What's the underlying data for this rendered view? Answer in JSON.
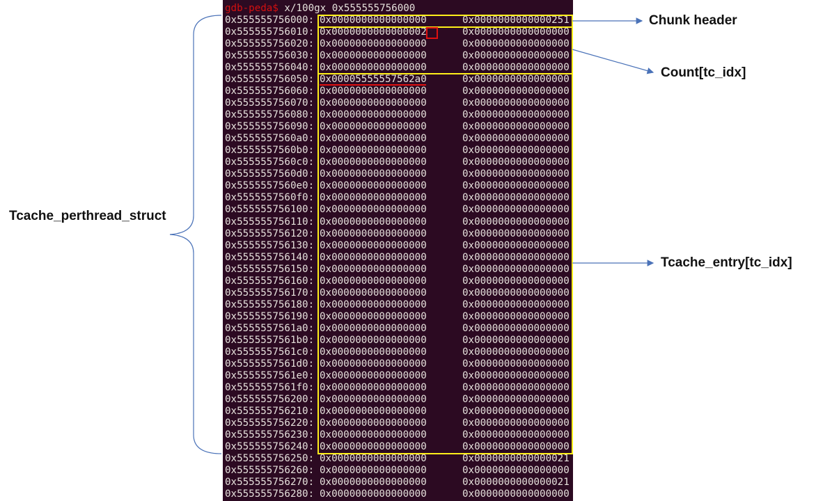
{
  "terminal": {
    "prompt": "gdb-peda$",
    "command": " x/100gx 0x555555756000",
    "rows": [
      {
        "address": "0x555555756000:",
        "v1": "0x0000000000000000",
        "v2": "0x0000000000000251"
      },
      {
        "address": "0x555555756010:",
        "v1": "0x0000000000000002",
        "v2": "0x0000000000000000"
      },
      {
        "address": "0x555555756020:",
        "v1": "0x0000000000000000",
        "v2": "0x0000000000000000"
      },
      {
        "address": "0x555555756030:",
        "v1": "0x0000000000000000",
        "v2": "0x0000000000000000"
      },
      {
        "address": "0x555555756040:",
        "v1": "0x0000000000000000",
        "v2": "0x0000000000000000"
      },
      {
        "address": "0x555555756050:",
        "v1": "0x00005555557562a0",
        "v2": "0x0000000000000000"
      },
      {
        "address": "0x555555756060:",
        "v1": "0x0000000000000000",
        "v2": "0x0000000000000000"
      },
      {
        "address": "0x555555756070:",
        "v1": "0x0000000000000000",
        "v2": "0x0000000000000000"
      },
      {
        "address": "0x555555756080:",
        "v1": "0x0000000000000000",
        "v2": "0x0000000000000000"
      },
      {
        "address": "0x555555756090:",
        "v1": "0x0000000000000000",
        "v2": "0x0000000000000000"
      },
      {
        "address": "0x5555557560a0:",
        "v1": "0x0000000000000000",
        "v2": "0x0000000000000000"
      },
      {
        "address": "0x5555557560b0:",
        "v1": "0x0000000000000000",
        "v2": "0x0000000000000000"
      },
      {
        "address": "0x5555557560c0:",
        "v1": "0x0000000000000000",
        "v2": "0x0000000000000000"
      },
      {
        "address": "0x5555557560d0:",
        "v1": "0x0000000000000000",
        "v2": "0x0000000000000000"
      },
      {
        "address": "0x5555557560e0:",
        "v1": "0x0000000000000000",
        "v2": "0x0000000000000000"
      },
      {
        "address": "0x5555557560f0:",
        "v1": "0x0000000000000000",
        "v2": "0x0000000000000000"
      },
      {
        "address": "0x555555756100:",
        "v1": "0x0000000000000000",
        "v2": "0x0000000000000000"
      },
      {
        "address": "0x555555756110:",
        "v1": "0x0000000000000000",
        "v2": "0x0000000000000000"
      },
      {
        "address": "0x555555756120:",
        "v1": "0x0000000000000000",
        "v2": "0x0000000000000000"
      },
      {
        "address": "0x555555756130:",
        "v1": "0x0000000000000000",
        "v2": "0x0000000000000000"
      },
      {
        "address": "0x555555756140:",
        "v1": "0x0000000000000000",
        "v2": "0x0000000000000000"
      },
      {
        "address": "0x555555756150:",
        "v1": "0x0000000000000000",
        "v2": "0x0000000000000000"
      },
      {
        "address": "0x555555756160:",
        "v1": "0x0000000000000000",
        "v2": "0x0000000000000000"
      },
      {
        "address": "0x555555756170:",
        "v1": "0x0000000000000000",
        "v2": "0x0000000000000000"
      },
      {
        "address": "0x555555756180:",
        "v1": "0x0000000000000000",
        "v2": "0x0000000000000000"
      },
      {
        "address": "0x555555756190:",
        "v1": "0x0000000000000000",
        "v2": "0x0000000000000000"
      },
      {
        "address": "0x5555557561a0:",
        "v1": "0x0000000000000000",
        "v2": "0x0000000000000000"
      },
      {
        "address": "0x5555557561b0:",
        "v1": "0x0000000000000000",
        "v2": "0x0000000000000000"
      },
      {
        "address": "0x5555557561c0:",
        "v1": "0x0000000000000000",
        "v2": "0x0000000000000000"
      },
      {
        "address": "0x5555557561d0:",
        "v1": "0x0000000000000000",
        "v2": "0x0000000000000000"
      },
      {
        "address": "0x5555557561e0:",
        "v1": "0x0000000000000000",
        "v2": "0x0000000000000000"
      },
      {
        "address": "0x5555557561f0:",
        "v1": "0x0000000000000000",
        "v2": "0x0000000000000000"
      },
      {
        "address": "0x555555756200:",
        "v1": "0x0000000000000000",
        "v2": "0x0000000000000000"
      },
      {
        "address": "0x555555756210:",
        "v1": "0x0000000000000000",
        "v2": "0x0000000000000000"
      },
      {
        "address": "0x555555756220:",
        "v1": "0x0000000000000000",
        "v2": "0x0000000000000000"
      },
      {
        "address": "0x555555756230:",
        "v1": "0x0000000000000000",
        "v2": "0x0000000000000000"
      },
      {
        "address": "0x555555756240:",
        "v1": "0x0000000000000000",
        "v2": "0x0000000000000000"
      },
      {
        "address": "0x555555756250:",
        "v1": "0x0000000000000000",
        "v2": "0x0000000000000021"
      },
      {
        "address": "0x555555756260:",
        "v1": "0x0000000000000000",
        "v2": "0x0000000000000000"
      },
      {
        "address": "0x555555756270:",
        "v1": "0x0000000000000000",
        "v2": "0x0000000000000021"
      },
      {
        "address": "0x555555756280:",
        "v1": "0x0000000000000000",
        "v2": "0x0000000000000000"
      }
    ]
  },
  "labels": {
    "chunk_header": "Chunk header",
    "count": "Count[tc_idx]",
    "entry": "Tcache_entry[tc_idx]",
    "struct": "Tcache_perthread_struct"
  },
  "colors": {
    "terminal_bg": "#2c0a22",
    "highlight_box": "#ffef1a",
    "marker": "#e01010",
    "arrow": "#4a72b8"
  }
}
